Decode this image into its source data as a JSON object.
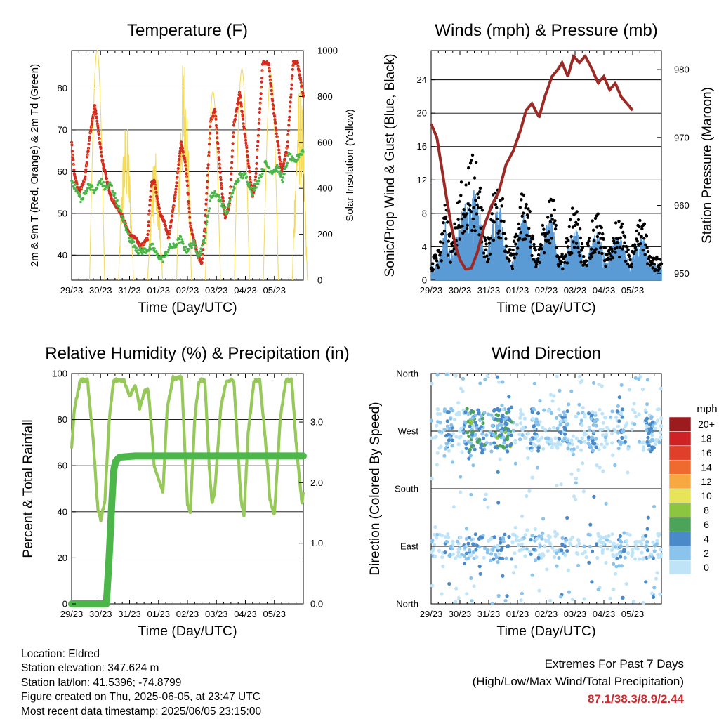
{
  "x_tick_labels": [
    "29/23",
    "30/23",
    "31/23",
    "01/23",
    "02/23",
    "03/23",
    "04/23",
    "05/23"
  ],
  "chart_data": [
    {
      "id": "temperature",
      "type": "line",
      "title": "Temperature (F)",
      "xlabel": "Time (Day/UTC)",
      "ylabel": "2m & 9m T (Red, Orange) & 2m Td (Green)",
      "ylabel_right": "Solar Insolation (Yellow)",
      "ylim": [
        34,
        89
      ],
      "yticks": [
        40,
        50,
        60,
        70,
        80
      ],
      "ylim_right": [
        0,
        1000
      ],
      "yticks_right": [
        0,
        200,
        400,
        600,
        800,
        1000
      ],
      "x_days": [
        0,
        8
      ],
      "series": [
        {
          "color": "#d42a22",
          "points": [
            [
              0,
              67
            ],
            [
              0.1,
              59
            ],
            [
              0.25,
              55
            ],
            [
              0.45,
              58
            ],
            [
              0.62,
              68
            ],
            [
              0.8,
              76
            ],
            [
              1.05,
              63
            ],
            [
              1.35,
              54
            ],
            [
              1.7,
              50
            ],
            [
              2.0,
              45
            ],
            [
              2.2,
              44
            ],
            [
              2.4,
              42
            ],
            [
              2.62,
              44
            ],
            [
              2.75,
              57
            ],
            [
              2.85,
              58
            ],
            [
              3.05,
              50
            ],
            [
              3.2,
              48
            ],
            [
              3.35,
              44
            ],
            [
              3.55,
              53
            ],
            [
              3.78,
              67
            ],
            [
              3.95,
              61
            ],
            [
              4.1,
              47
            ],
            [
              4.35,
              40
            ],
            [
              4.5,
              38
            ],
            [
              4.6,
              47
            ],
            [
              4.8,
              72
            ],
            [
              4.95,
              75
            ],
            [
              5.15,
              58
            ],
            [
              5.3,
              49
            ],
            [
              5.45,
              52
            ],
            [
              5.6,
              71
            ],
            [
              5.8,
              79
            ],
            [
              6.0,
              68
            ],
            [
              6.25,
              54
            ],
            [
              6.35,
              58
            ],
            [
              6.6,
              86
            ],
            [
              6.8,
              86
            ],
            [
              6.95,
              76
            ],
            [
              7.25,
              60
            ],
            [
              7.45,
              66
            ],
            [
              7.65,
              86
            ],
            [
              7.8,
              86
            ],
            [
              8.0,
              78
            ]
          ]
        },
        {
          "color": "#4ab64a",
          "points": [
            [
              0,
              58
            ],
            [
              0.2,
              55
            ],
            [
              0.35,
              53
            ],
            [
              0.6,
              57
            ],
            [
              0.8,
              55
            ],
            [
              1.0,
              58
            ],
            [
              1.15,
              56
            ],
            [
              1.35,
              57
            ],
            [
              1.5,
              54
            ],
            [
              1.75,
              49
            ],
            [
              2.0,
              44
            ],
            [
              2.3,
              41
            ],
            [
              2.5,
              41
            ],
            [
              2.8,
              42
            ],
            [
              2.95,
              40
            ],
            [
              3.15,
              39
            ],
            [
              3.4,
              42
            ],
            [
              3.55,
              42
            ],
            [
              3.75,
              44
            ],
            [
              3.95,
              41
            ],
            [
              4.2,
              43
            ],
            [
              4.4,
              40
            ],
            [
              4.6,
              44
            ],
            [
              4.8,
              54
            ],
            [
              4.95,
              55
            ],
            [
              5.15,
              53
            ],
            [
              5.35,
              50
            ],
            [
              5.6,
              56
            ],
            [
              5.8,
              59
            ],
            [
              6.0,
              59
            ],
            [
              6.25,
              55
            ],
            [
              6.45,
              58
            ],
            [
              6.7,
              62
            ],
            [
              6.9,
              60
            ],
            [
              7.1,
              61
            ],
            [
              7.3,
              58
            ],
            [
              7.5,
              64
            ],
            [
              7.7,
              62
            ],
            [
              7.85,
              64
            ],
            [
              8.0,
              65
            ]
          ]
        }
      ],
      "solar_days": [
        {
          "start": 0.62,
          "peak": 1000,
          "noisy": false
        },
        {
          "start": 1.62,
          "peak": 700,
          "noisy": true
        },
        {
          "start": 2.62,
          "peak": 560,
          "noisy": true
        },
        {
          "start": 3.62,
          "peak": 1000,
          "noisy": true
        },
        {
          "start": 4.62,
          "peak": 820,
          "noisy": false
        },
        {
          "start": 5.62,
          "peak": 920,
          "noisy": false
        },
        {
          "start": 6.62,
          "peak": 900,
          "noisy": false
        },
        {
          "start": 7.62,
          "peak": 880,
          "noisy": true
        }
      ]
    },
    {
      "id": "winds",
      "type": "scatter",
      "title": "Winds (mph) & Pressure (mb)",
      "xlabel": "Time (Day/UTC)",
      "ylabel": "Sonic/Prop Wind & Gust (Blue, Black)",
      "ylabel_right": "Station Pressure (Maroon)",
      "ylim": [
        0,
        27.5
      ],
      "yticks": [
        0,
        4,
        8,
        12,
        16,
        20,
        24
      ],
      "ylim_right": [
        949,
        982.8
      ],
      "yticks_right": [
        950,
        960,
        970,
        980
      ],
      "x_days": [
        0,
        8
      ],
      "pressure": [
        [
          0,
          972
        ],
        [
          0.2,
          970
        ],
        [
          0.5,
          962
        ],
        [
          0.7,
          957
        ],
        [
          0.85,
          954
        ],
        [
          1.0,
          952
        ],
        [
          1.2,
          950.6
        ],
        [
          1.4,
          950.8
        ],
        [
          1.6,
          953
        ],
        [
          1.85,
          957
        ],
        [
          2.1,
          960
        ],
        [
          2.35,
          962
        ],
        [
          2.6,
          966
        ],
        [
          2.85,
          968
        ],
        [
          3.1,
          971
        ],
        [
          3.3,
          974
        ],
        [
          3.5,
          975
        ],
        [
          3.75,
          973
        ],
        [
          3.95,
          976
        ],
        [
          4.2,
          979
        ],
        [
          4.4,
          980
        ],
        [
          4.55,
          981
        ],
        [
          4.75,
          979
        ],
        [
          4.95,
          982
        ],
        [
          5.15,
          981
        ],
        [
          5.35,
          982
        ],
        [
          5.6,
          980
        ],
        [
          5.8,
          978
        ],
        [
          6.0,
          979
        ],
        [
          6.2,
          977
        ],
        [
          6.4,
          978
        ],
        [
          6.6,
          976
        ],
        [
          6.8,
          975
        ],
        [
          7.0,
          974
        ]
      ],
      "wind_activity": [
        [
          0,
          1.5
        ],
        [
          0.3,
          3
        ],
        [
          0.5,
          7
        ],
        [
          0.7,
          3
        ],
        [
          1.0,
          8
        ],
        [
          1.3,
          10
        ],
        [
          1.5,
          11
        ],
        [
          1.7,
          8
        ],
        [
          1.9,
          3
        ],
        [
          2.2,
          8
        ],
        [
          2.4,
          9
        ],
        [
          2.6,
          4
        ],
        [
          2.8,
          2
        ],
        [
          3.1,
          7
        ],
        [
          3.3,
          9
        ],
        [
          3.5,
          4
        ],
        [
          3.7,
          2
        ],
        [
          4.0,
          7
        ],
        [
          4.2,
          8
        ],
        [
          4.4,
          3
        ],
        [
          4.6,
          2
        ],
        [
          4.9,
          6
        ],
        [
          5.1,
          6
        ],
        [
          5.3,
          2
        ],
        [
          5.6,
          5
        ],
        [
          5.8,
          6
        ],
        [
          6.1,
          2
        ],
        [
          6.4,
          5
        ],
        [
          6.6,
          5
        ],
        [
          6.9,
          2
        ],
        [
          7.2,
          5
        ],
        [
          7.4,
          5
        ],
        [
          7.6,
          2
        ],
        [
          8,
          2
        ]
      ]
    },
    {
      "id": "humidity",
      "type": "line",
      "title": "Relative Humidity (%) & Precipitation (in)",
      "xlabel": "Time (Day/UTC)",
      "ylabel": "Percent & Total Rainfall",
      "ylim": [
        0,
        100
      ],
      "yticks": [
        0,
        20,
        40,
        60,
        80,
        100
      ],
      "ylim_right": [
        0,
        3.8
      ],
      "yticks_right": [
        "0.0",
        "1.0",
        "2.0",
        "3.0"
      ],
      "x_days": [
        0,
        8
      ],
      "rh": [
        [
          0,
          68
        ],
        [
          0.1,
          85
        ],
        [
          0.3,
          97
        ],
        [
          0.55,
          97
        ],
        [
          0.75,
          70
        ],
        [
          0.9,
          42
        ],
        [
          1.0,
          36
        ],
        [
          1.15,
          45
        ],
        [
          1.3,
          80
        ],
        [
          1.45,
          97
        ],
        [
          1.8,
          97
        ],
        [
          2.0,
          90
        ],
        [
          2.2,
          95
        ],
        [
          2.35,
          85
        ],
        [
          2.5,
          92
        ],
        [
          2.65,
          93
        ],
        [
          2.8,
          70
        ],
        [
          2.9,
          50
        ],
        [
          3.0,
          55
        ],
        [
          3.15,
          48
        ],
        [
          3.3,
          85
        ],
        [
          3.5,
          98
        ],
        [
          3.8,
          98
        ],
        [
          3.9,
          70
        ],
        [
          4.0,
          43
        ],
        [
          4.1,
          40
        ],
        [
          4.25,
          80
        ],
        [
          4.4,
          97
        ],
        [
          4.6,
          97
        ],
        [
          4.75,
          60
        ],
        [
          4.85,
          43
        ],
        [
          4.95,
          50
        ],
        [
          5.15,
          85
        ],
        [
          5.35,
          97
        ],
        [
          5.6,
          97
        ],
        [
          5.75,
          65
        ],
        [
          5.85,
          45
        ],
        [
          5.95,
          38
        ],
        [
          6.1,
          75
        ],
        [
          6.3,
          97
        ],
        [
          6.5,
          97
        ],
        [
          6.7,
          70
        ],
        [
          6.85,
          45
        ],
        [
          7.0,
          38
        ],
        [
          7.2,
          80
        ],
        [
          7.4,
          97
        ],
        [
          7.6,
          97
        ],
        [
          7.75,
          70
        ],
        [
          7.9,
          50
        ],
        [
          7.95,
          44
        ],
        [
          8.0,
          48
        ]
      ],
      "rain": [
        [
          0,
          0
        ],
        [
          1.2,
          0
        ],
        [
          1.3,
          0.8
        ],
        [
          1.38,
          1.6
        ],
        [
          1.45,
          2.2
        ],
        [
          1.52,
          2.35
        ],
        [
          1.65,
          2.42
        ],
        [
          2.2,
          2.44
        ],
        [
          8.0,
          2.44
        ]
      ]
    },
    {
      "id": "direction",
      "type": "scatter",
      "title": "Wind Direction",
      "xlabel": "Time (Day/UTC)",
      "ylabel": "Direction (Colored By Speed)",
      "y_tick_labels": [
        "North",
        "East",
        "South",
        "West",
        "North"
      ],
      "x_days": [
        0,
        8
      ],
      "legend_title": "mph",
      "legend_labels": [
        "0",
        "2",
        "4",
        "6",
        "8",
        "10",
        "12",
        "14",
        "16",
        "18",
        "20+"
      ],
      "legend_colors": [
        "#bfe4f8",
        "#8ac4ec",
        "#4a8ac8",
        "#4ca35a",
        "#8cc53f",
        "#e8e45a",
        "#f7a840",
        "#ef6a2e",
        "#e0402a",
        "#cf2224",
        "#9b1b1e"
      ]
    }
  ],
  "info": {
    "location": "Location: Eldred",
    "elevation": "Station elevation: 347.624 m",
    "latlon": "Station lat/lon: 41.5396; -74.8799",
    "created": "Figure created on Thu, 2025-06-05, at 23:47 UTC",
    "recent": "Most recent data timestamp: 2025/06/05 23:15:00"
  },
  "extremes": {
    "title": "Extremes For Past 7 Days",
    "subtitle": "(High/Low/Max Wind/Total Precipitation)",
    "values": "87.1/38.3/8.9/2.44"
  }
}
